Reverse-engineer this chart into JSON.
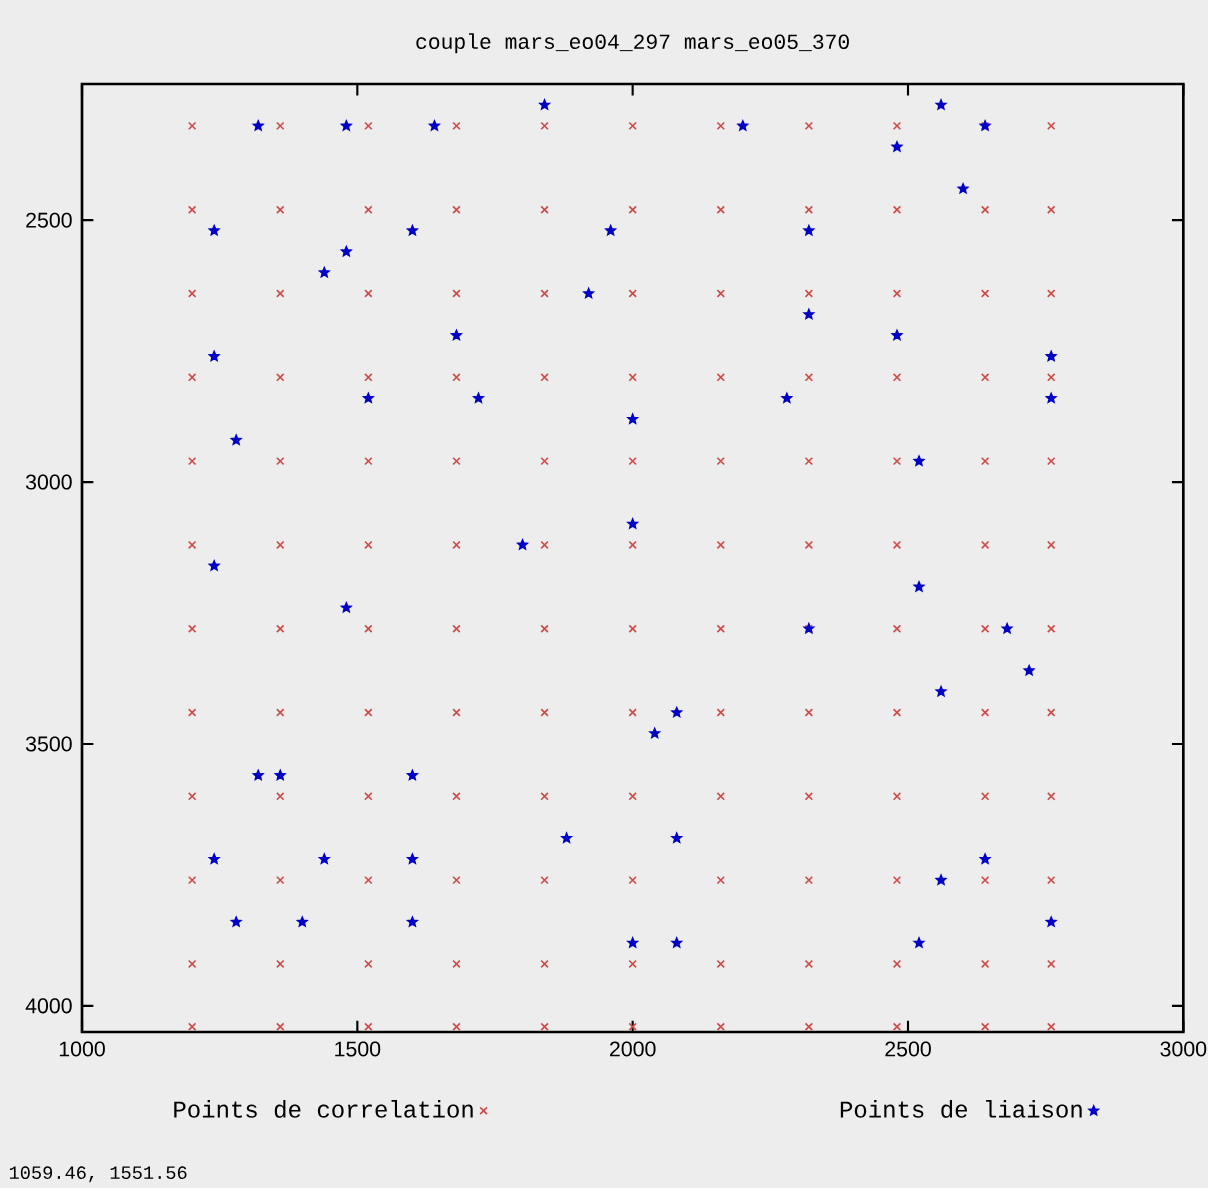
{
  "chart_data": {
    "type": "scatter",
    "title": "couple mars_eo04_297 mars_eo05_370",
    "xlim": [
      1000,
      3000
    ],
    "xticks": [
      1000,
      1500,
      2000,
      2500,
      3000
    ],
    "ylim": [
      4050,
      2240
    ],
    "yticks": [
      2500,
      3000,
      3500,
      4000
    ],
    "legend": "bottom",
    "grid": false,
    "annotations": [
      "1059.46, 1551.56"
    ],
    "series": [
      {
        "name": "Points de correlation",
        "color": "#d04848",
        "marker": "cross",
        "x": [
          1200,
          1360,
          1520,
          1680,
          1840,
          2000,
          2160,
          2320,
          2480,
          2640,
          2760,
          1200,
          1360,
          1520,
          1680,
          1840,
          2000,
          2160,
          2320,
          2480,
          2640,
          2760,
          1200,
          1360,
          1520,
          1680,
          1840,
          2000,
          2160,
          2320,
          2480,
          2640,
          2760,
          1200,
          1360,
          1520,
          1680,
          1840,
          2000,
          2160,
          2320,
          2480,
          2640,
          2760,
          1200,
          1360,
          1520,
          1680,
          1840,
          2000,
          2160,
          2320,
          2480,
          2640,
          2760,
          1200,
          1360,
          1520,
          1680,
          1840,
          2000,
          2160,
          2320,
          2480,
          2640,
          2760,
          1200,
          1360,
          1520,
          1680,
          1840,
          2000,
          2160,
          2320,
          2480,
          2640,
          2760,
          1200,
          1360,
          1520,
          1680,
          1840,
          2000,
          2160,
          2320,
          2480,
          2640,
          2760,
          1200,
          1360,
          1520,
          1680,
          1840,
          2000,
          2160,
          2320,
          2480,
          2640,
          2760,
          1200,
          1360,
          1520,
          1680,
          1840,
          2000,
          2160,
          2320,
          2480,
          2640,
          2760,
          1200,
          1360,
          1520,
          1680,
          1840,
          2000,
          2160,
          2320,
          2480,
          2640,
          2760,
          1200,
          1360,
          1520,
          1680,
          1840,
          2000,
          2160,
          2320,
          2480,
          2640,
          2760
        ],
        "values": [
          2320,
          2320,
          2320,
          2320,
          2320,
          2320,
          2320,
          2320,
          2320,
          2320,
          2320,
          2480,
          2480,
          2480,
          2480,
          2480,
          2480,
          2480,
          2480,
          2480,
          2480,
          2480,
          2640,
          2640,
          2640,
          2640,
          2640,
          2640,
          2640,
          2640,
          2640,
          2640,
          2640,
          2800,
          2800,
          2800,
          2800,
          2800,
          2800,
          2800,
          2800,
          2800,
          2800,
          2800,
          2960,
          2960,
          2960,
          2960,
          2960,
          2960,
          2960,
          2960,
          2960,
          2960,
          2960,
          3120,
          3120,
          3120,
          3120,
          3120,
          3120,
          3120,
          3120,
          3120,
          3120,
          3120,
          3280,
          3280,
          3280,
          3280,
          3280,
          3280,
          3280,
          3280,
          3280,
          3280,
          3280,
          3440,
          3440,
          3440,
          3440,
          3440,
          3440,
          3440,
          3440,
          3440,
          3440,
          3440,
          3600,
          3600,
          3600,
          3600,
          3600,
          3600,
          3600,
          3600,
          3600,
          3600,
          3600,
          3760,
          3760,
          3760,
          3760,
          3760,
          3760,
          3760,
          3760,
          3760,
          3760,
          3760,
          3920,
          3920,
          3920,
          3920,
          3920,
          3920,
          3920,
          3920,
          3920,
          3920,
          3920,
          4040,
          4040,
          4040,
          4040,
          4040,
          4040,
          4040,
          4040,
          4040,
          4040,
          4040
        ]
      },
      {
        "name": "Points de liaison",
        "color": "#0000c8",
        "marker": "star",
        "x": [
          1840,
          1320,
          1480,
          1640,
          1240,
          1600,
          1960,
          1480,
          1440,
          1920,
          1680,
          1240,
          1520,
          1720,
          2000,
          1280,
          2000,
          1800,
          1240,
          1480,
          2560,
          2200,
          2640,
          2480,
          2600,
          2320,
          2320,
          2480,
          2760,
          2280,
          2760,
          2520,
          2520,
          2320,
          2680,
          2720,
          2560,
          2080,
          2040,
          2080,
          2640,
          2560,
          2760,
          2000,
          2080,
          2520,
          1320,
          1360,
          1600,
          1880,
          1240,
          1440,
          1600,
          1280,
          1400,
          1600
        ],
        "values": [
          2280,
          2320,
          2320,
          2320,
          2520,
          2520,
          2520,
          2560,
          2600,
          2640,
          2720,
          2760,
          2840,
          2840,
          2880,
          2920,
          3080,
          3120,
          3160,
          3240,
          2280,
          2320,
          2320,
          2360,
          2440,
          2520,
          2680,
          2720,
          2760,
          2840,
          2840,
          2960,
          3200,
          3280,
          3280,
          3360,
          3400,
          3440,
          3480,
          3680,
          3720,
          3760,
          3840,
          3880,
          3880,
          3880,
          3560,
          3560,
          3560,
          3680,
          3720,
          3720,
          3720,
          3840,
          3840,
          3840
        ]
      }
    ]
  }
}
